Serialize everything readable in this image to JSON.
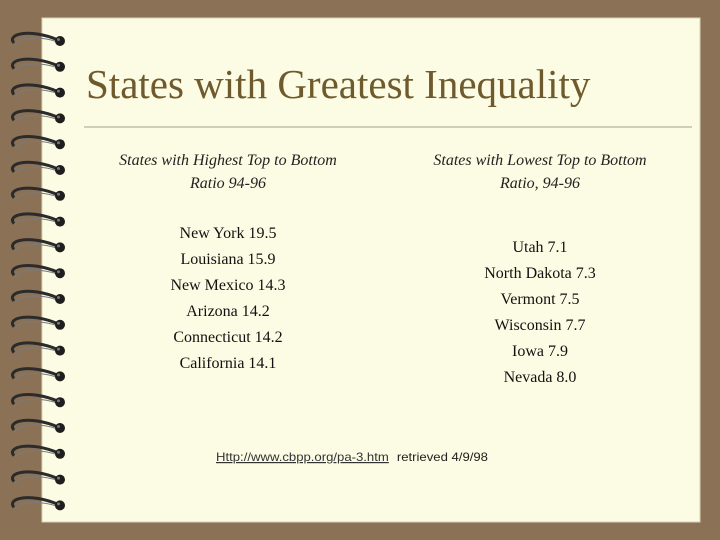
{
  "title": "States with Greatest Inequality",
  "left": {
    "heading": [
      "States with Highest Top to Bottom",
      "Ratio 94-96"
    ],
    "items": [
      "New York  19.5",
      "Louisiana 15.9",
      "New Mexico 14.3",
      "Arizona 14.2",
      "Connecticut 14.2",
      "California 14.1"
    ]
  },
  "right": {
    "heading": [
      "States with Lowest Top to Bottom",
      "Ratio, 94-96"
    ],
    "items": [
      "Utah  7.1",
      "North Dakota  7.3",
      "Vermont  7.5",
      "Wisconsin 7.7",
      "Iowa 7.9",
      "Nevada 8.0"
    ]
  },
  "source": {
    "link": "Http://www.cbpp.org/pa-3.htm",
    "note": "retrieved 4/9/98"
  }
}
